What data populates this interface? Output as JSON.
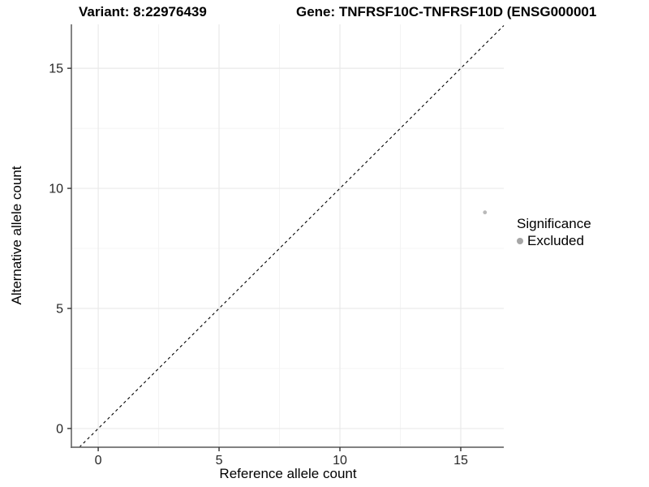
{
  "chart_data": {
    "type": "scatter",
    "title_left": "Variant: 8:22976439",
    "title_right": "Gene: TNFRSF10C-TNFRSF10D (ENSG000001",
    "xlabel": "Reference allele count",
    "ylabel": "Alternative allele count",
    "xlim": [
      -1.11,
      16.78
    ],
    "ylim": [
      -0.78,
      16.83
    ],
    "x_ticks": [
      0,
      5,
      10,
      15
    ],
    "y_ticks": [
      0,
      5,
      10,
      15
    ],
    "x_minor_gridlines": [
      2.5,
      7.5,
      12.5
    ],
    "y_minor_gridlines": [
      2.5,
      7.5,
      12.5
    ],
    "grid": true,
    "points": [
      {
        "x": 16,
        "y": 9,
        "series": "Excluded"
      }
    ],
    "point_color": "#b9b9b9",
    "point_radius": 2.4,
    "identity_line": {
      "style": "dashed",
      "slope": 1,
      "intercept": 0,
      "color": "#000000"
    },
    "legend": {
      "title": "Significance",
      "position": "right",
      "entries": [
        {
          "label": "Excluded",
          "color": "#a6a6a6"
        }
      ]
    },
    "colors": {
      "axis_line": "#6f6f6f",
      "tick_mark": "#333333",
      "tick_label": "#262626",
      "major_grid": "#e9e9e9",
      "minor_grid": "#f4f4f4"
    }
  }
}
